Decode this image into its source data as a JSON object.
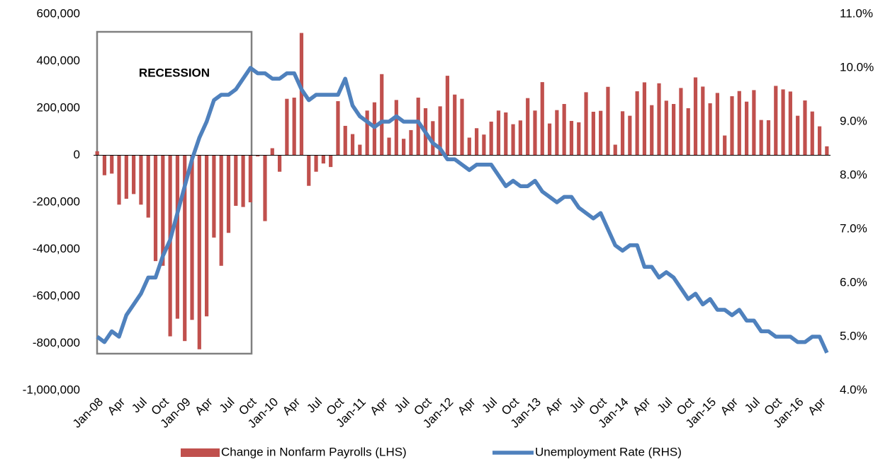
{
  "chart_data": {
    "type": "bar_line",
    "annotations": [
      "RECESSION"
    ],
    "categories": [
      "Jan-08",
      null,
      null,
      "Apr",
      null,
      null,
      "Jul",
      null,
      null,
      "Oct",
      null,
      null,
      "Jan-09",
      null,
      null,
      "Apr",
      null,
      null,
      "Jul",
      null,
      null,
      "Oct",
      null,
      null,
      "Jan-10",
      null,
      null,
      "Apr",
      null,
      null,
      "Jul",
      null,
      null,
      "Oct",
      null,
      null,
      "Jan-11",
      null,
      null,
      "Apr",
      null,
      null,
      "Jul",
      null,
      null,
      "Oct",
      null,
      null,
      "Jan-12",
      null,
      null,
      "Apr",
      null,
      null,
      "Jul",
      null,
      null,
      "Oct",
      null,
      null,
      "Jan-13",
      null,
      null,
      "Apr",
      null,
      null,
      "Jul",
      null,
      null,
      "Oct",
      null,
      null,
      "Jan-14",
      null,
      null,
      "Apr",
      null,
      null,
      "Jul",
      null,
      null,
      "Oct",
      null,
      null,
      "Jan-15",
      null,
      null,
      "Apr",
      null,
      null,
      "Jul",
      null,
      null,
      "Oct",
      null,
      null,
      "Jan-16",
      null,
      null,
      "Apr",
      null
    ],
    "series": [
      {
        "name": "Change in Nonfarm Payrolls (LHS)",
        "type": "bar",
        "color": "#c0504d",
        "values": [
          17000,
          -85000,
          -78000,
          -210000,
          -185000,
          -165000,
          -210000,
          -265000,
          -450000,
          -470000,
          -770000,
          -695000,
          -790000,
          -700000,
          -825000,
          -685000,
          -350000,
          -470000,
          -330000,
          -215000,
          -220000,
          -200000,
          -5000,
          -280000,
          30000,
          -70000,
          240000,
          245000,
          520000,
          -130000,
          -70000,
          -35000,
          -50000,
          230000,
          125000,
          90000,
          45000,
          190000,
          225000,
          345000,
          75000,
          235000,
          70000,
          107000,
          245000,
          200000,
          145000,
          208000,
          338000,
          258000,
          240000,
          75000,
          115000,
          88000,
          143000,
          190000,
          182000,
          132000,
          148000,
          243000,
          190000,
          311000,
          135000,
          192000,
          218000,
          146000,
          140000,
          268000,
          185000,
          189000,
          291000,
          45000,
          187000,
          168000,
          272000,
          310000,
          213000,
          306000,
          232000,
          218000,
          286000,
          200000,
          331000,
          292000,
          221000,
          265000,
          84000,
          251000,
          273000,
          228000,
          277000,
          150000,
          149000,
          295000,
          280000,
          271000,
          168000,
          233000,
          186000,
          123000,
          38000
        ]
      },
      {
        "name": "Unemployment Rate (RHS)",
        "type": "line",
        "axis": "y2",
        "color": "#4f81bd",
        "values": [
          5.0,
          4.9,
          5.1,
          5.0,
          5.4,
          5.6,
          5.8,
          6.1,
          6.1,
          6.5,
          6.8,
          7.3,
          7.8,
          8.3,
          8.7,
          9.0,
          9.4,
          9.5,
          9.5,
          9.6,
          9.8,
          10.0,
          9.9,
          9.9,
          9.8,
          9.8,
          9.9,
          9.9,
          9.6,
          9.4,
          9.5,
          9.5,
          9.5,
          9.5,
          9.8,
          9.3,
          9.1,
          9.0,
          8.9,
          9.0,
          9.0,
          9.1,
          9.0,
          9.0,
          9.0,
          8.8,
          8.6,
          8.5,
          8.3,
          8.3,
          8.2,
          8.1,
          8.2,
          8.2,
          8.2,
          8.0,
          7.8,
          7.9,
          7.8,
          7.8,
          7.9,
          7.7,
          7.6,
          7.5,
          7.6,
          7.6,
          7.4,
          7.3,
          7.2,
          7.3,
          7.0,
          6.7,
          6.6,
          6.7,
          6.7,
          6.3,
          6.3,
          6.1,
          6.2,
          6.1,
          5.9,
          5.7,
          5.8,
          5.6,
          5.7,
          5.5,
          5.5,
          5.4,
          5.5,
          5.3,
          5.3,
          5.1,
          5.1,
          5.0,
          5.0,
          5.0,
          4.9,
          4.9,
          5.0,
          5.0,
          4.7
        ]
      }
    ],
    "ylim": [
      -1000000,
      600000
    ],
    "yticks": [
      {
        "value": -1000000,
        "label": "-1,000,000"
      },
      {
        "value": -800000,
        "label": "-800,000"
      },
      {
        "value": -600000,
        "label": "-600,000"
      },
      {
        "value": -400000,
        "label": "-400,000"
      },
      {
        "value": -200000,
        "label": "-200,000"
      },
      0,
      {
        "value": 200000,
        "label": "200,000"
      },
      {
        "value": 400000,
        "label": "400,000"
      },
      {
        "value": 600000,
        "label": "600,000"
      }
    ],
    "y2lim": [
      4,
      11
    ],
    "y2ticks": [
      {
        "value": 4,
        "label": "4.0%"
      },
      {
        "value": 5,
        "label": "5.0%"
      },
      {
        "value": 6,
        "label": "6.0%"
      },
      {
        "value": 7,
        "label": "7.0%"
      },
      {
        "value": 8,
        "label": "8.0%"
      },
      {
        "value": 9,
        "label": "9.0%"
      },
      {
        "value": 10,
        "label": "10.0%"
      },
      {
        "value": 11,
        "label": "11.0%"
      }
    ],
    "legend": "bottom"
  }
}
